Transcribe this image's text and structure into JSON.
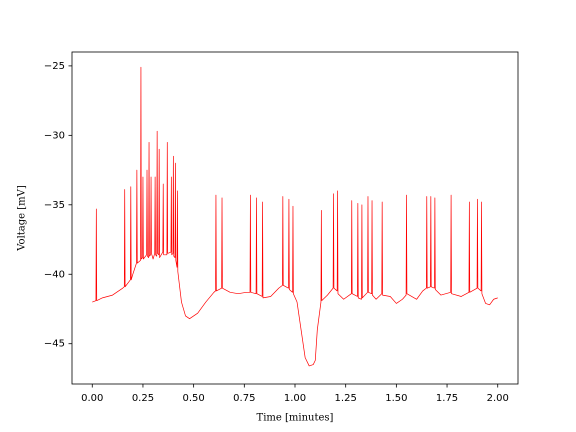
{
  "chart_data": {
    "type": "line",
    "x_label": "Time [minutes]",
    "y_label": "Voltage [mV]",
    "xlim": [
      -0.1,
      2.1
    ],
    "ylim": [
      -47.9,
      -24
    ],
    "xticks": [
      {
        "value": 0,
        "label": "0.00"
      },
      {
        "value": 0.25,
        "label": "0.25"
      },
      {
        "value": 0.5,
        "label": "0.50"
      },
      {
        "value": 0.75,
        "label": "0.75"
      },
      {
        "value": 1,
        "label": "1.00"
      },
      {
        "value": 1.25,
        "label": "1.25"
      },
      {
        "value": 1.5,
        "label": "1.50"
      },
      {
        "value": 1.75,
        "label": "1.75"
      },
      {
        "value": 2,
        "label": "2.00"
      }
    ],
    "yticks": [
      {
        "value": -45,
        "label": "−45"
      },
      {
        "value": -40,
        "label": "−40"
      },
      {
        "value": -35,
        "label": "−35"
      },
      {
        "value": -30,
        "label": "−30"
      },
      {
        "value": -25,
        "label": "−25"
      }
    ],
    "grid": false,
    "series": [
      {
        "color": "#ff0000",
        "x": [
          0.0,
          0.018,
          0.02,
          0.022,
          0.05,
          0.1,
          0.15,
          0.158,
          0.16,
          0.162,
          0.188,
          0.19,
          0.192,
          0.2,
          0.218,
          0.22,
          0.222,
          0.238,
          0.24,
          0.242,
          0.248,
          0.25,
          0.252,
          0.268,
          0.27,
          0.272,
          0.278,
          0.28,
          0.282,
          0.288,
          0.29,
          0.292,
          0.3,
          0.308,
          0.31,
          0.312,
          0.318,
          0.32,
          0.322,
          0.328,
          0.33,
          0.332,
          0.348,
          0.35,
          0.352,
          0.368,
          0.37,
          0.372,
          0.388,
          0.39,
          0.392,
          0.398,
          0.4,
          0.402,
          0.408,
          0.41,
          0.412,
          0.418,
          0.42,
          0.422,
          0.44,
          0.46,
          0.48,
          0.52,
          0.56,
          0.6,
          0.608,
          0.61,
          0.612,
          0.638,
          0.64,
          0.642,
          0.68,
          0.72,
          0.76,
          0.778,
          0.78,
          0.782,
          0.808,
          0.81,
          0.812,
          0.838,
          0.84,
          0.842,
          0.88,
          0.92,
          0.938,
          0.94,
          0.942,
          0.968,
          0.97,
          0.972,
          0.988,
          0.99,
          0.992,
          1.01,
          1.03,
          1.05,
          1.07,
          1.09,
          1.1,
          1.11,
          1.128,
          1.13,
          1.132,
          1.16,
          1.188,
          1.19,
          1.192,
          1.208,
          1.21,
          1.212,
          1.24,
          1.278,
          1.28,
          1.282,
          1.308,
          1.31,
          1.312,
          1.328,
          1.33,
          1.332,
          1.358,
          1.36,
          1.362,
          1.378,
          1.38,
          1.382,
          1.4,
          1.428,
          1.43,
          1.432,
          1.47,
          1.5,
          1.53,
          1.548,
          1.55,
          1.552,
          1.6,
          1.63,
          1.648,
          1.65,
          1.652,
          1.668,
          1.67,
          1.672,
          1.688,
          1.69,
          1.692,
          1.72,
          1.768,
          1.77,
          1.772,
          1.82,
          1.858,
          1.86,
          1.862,
          1.898,
          1.9,
          1.902,
          1.918,
          1.92,
          1.922,
          1.94,
          1.96,
          1.98,
          2.0
        ],
        "values": [
          -42.0,
          -41.9,
          -35.3,
          -41.9,
          -41.7,
          -41.5,
          -41.0,
          -40.9,
          -33.9,
          -40.9,
          -40.4,
          -33.7,
          -40.4,
          -40.0,
          -39.2,
          -32.5,
          -39.2,
          -39.0,
          -25.1,
          -38.9,
          -38.8,
          -33.0,
          -38.9,
          -38.6,
          -32.5,
          -38.7,
          -38.8,
          -30.5,
          -38.7,
          -38.6,
          -33.0,
          -38.5,
          -38.9,
          -38.5,
          -33.0,
          -38.6,
          -38.7,
          -29.7,
          -38.5,
          -38.6,
          -31.0,
          -38.8,
          -38.4,
          -33.5,
          -38.6,
          -38.6,
          -30.5,
          -38.5,
          -38.4,
          -33.0,
          -38.6,
          -38.5,
          -31.5,
          -38.7,
          -38.8,
          -32.0,
          -39.0,
          -39.5,
          -34.0,
          -39.8,
          -42.0,
          -43.0,
          -43.2,
          -42.8,
          -42.0,
          -41.3,
          -41.2,
          -34.3,
          -41.2,
          -41.0,
          -34.5,
          -41.0,
          -41.3,
          -41.4,
          -41.3,
          -41.3,
          -34.3,
          -41.3,
          -41.4,
          -34.5,
          -41.4,
          -41.6,
          -34.8,
          -41.7,
          -41.6,
          -41.0,
          -40.8,
          -34.4,
          -40.8,
          -41.0,
          -34.6,
          -41.1,
          -41.3,
          -35.1,
          -41.4,
          -42.0,
          -44.0,
          -46.0,
          -46.6,
          -46.5,
          -46.2,
          -44.0,
          -42.0,
          -35.4,
          -41.9,
          -41.5,
          -41.0,
          -34.2,
          -41.0,
          -41.2,
          -34.0,
          -41.4,
          -41.8,
          -41.4,
          -34.7,
          -41.4,
          -41.6,
          -34.9,
          -41.7,
          -41.8,
          -35.0,
          -41.7,
          -41.3,
          -34.4,
          -41.3,
          -41.4,
          -34.7,
          -41.5,
          -41.8,
          -41.4,
          -34.8,
          -41.5,
          -41.6,
          -42.1,
          -41.8,
          -41.5,
          -34.3,
          -41.4,
          -41.8,
          -41.2,
          -41.0,
          -34.4,
          -41.0,
          -40.9,
          -34.4,
          -40.9,
          -41.0,
          -34.5,
          -41.1,
          -41.5,
          -41.3,
          -34.3,
          -41.4,
          -41.6,
          -41.3,
          -34.8,
          -41.3,
          -41.0,
          -34.6,
          -41.0,
          -41.2,
          -34.8,
          -41.4,
          -42.1,
          -42.2,
          -41.8,
          -41.7
        ]
      }
    ]
  }
}
